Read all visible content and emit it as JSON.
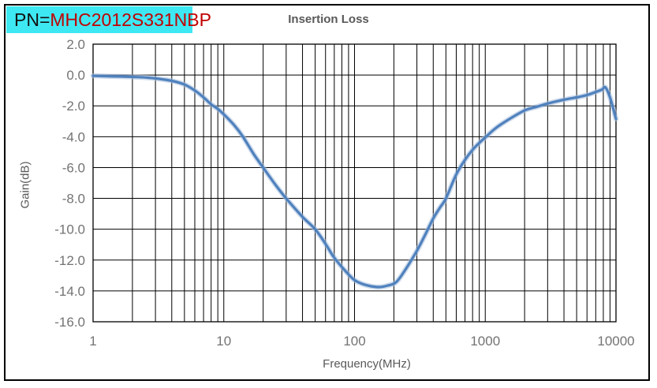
{
  "header": {
    "pn_prefix": "PN=",
    "pn_value": "MHC2012S331NBP",
    "pn_box_bg": "#3de8f2",
    "pn_value_color": "#c00000"
  },
  "chart_data": {
    "type": "line",
    "title": "Insertion Loss",
    "xlabel": "Frequency(MHz)",
    "ylabel": "Gain(dB)",
    "x_scale": "log",
    "xlim": [
      1,
      10000
    ],
    "ylim": [
      -16.0,
      2.0
    ],
    "y_tick_step": 2.0,
    "y_tick_labels": [
      "2.0",
      "0.0",
      "-2.0",
      "-4.0",
      "-6.0",
      "-8.0",
      "-10.0",
      "-12.0",
      "-14.0",
      "-16.0"
    ],
    "x_tick_labels": [
      "1",
      "10",
      "100",
      "1000",
      "10000"
    ],
    "grid": {
      "show": true,
      "color": "#000000",
      "log_minor_verticals": true
    },
    "legend": "none",
    "series": [
      {
        "name": "Insertion Loss",
        "color": "#4f81bd",
        "halo_color": "#a6bedd",
        "points": [
          [
            1,
            -0.05
          ],
          [
            1.3,
            -0.08
          ],
          [
            1.7,
            -0.1
          ],
          [
            2,
            -0.12
          ],
          [
            2.5,
            -0.16
          ],
          [
            3,
            -0.22
          ],
          [
            4,
            -0.38
          ],
          [
            5,
            -0.62
          ],
          [
            6,
            -1.0
          ],
          [
            7,
            -1.45
          ],
          [
            8,
            -1.9
          ],
          [
            9,
            -2.2
          ],
          [
            10,
            -2.55
          ],
          [
            12,
            -3.25
          ],
          [
            14,
            -4.0
          ],
          [
            17,
            -5.15
          ],
          [
            20,
            -6.0
          ],
          [
            25,
            -7.15
          ],
          [
            30,
            -8.0
          ],
          [
            40,
            -9.2
          ],
          [
            50,
            -10.0
          ],
          [
            60,
            -10.95
          ],
          [
            70,
            -11.85
          ],
          [
            85,
            -12.7
          ],
          [
            100,
            -13.3
          ],
          [
            120,
            -13.6
          ],
          [
            150,
            -13.75
          ],
          [
            180,
            -13.65
          ],
          [
            210,
            -13.4
          ],
          [
            250,
            -12.5
          ],
          [
            300,
            -11.4
          ],
          [
            350,
            -10.3
          ],
          [
            400,
            -9.3
          ],
          [
            450,
            -8.6
          ],
          [
            500,
            -8.0
          ],
          [
            600,
            -6.45
          ],
          [
            700,
            -5.5
          ],
          [
            800,
            -4.85
          ],
          [
            900,
            -4.4
          ],
          [
            1000,
            -4.05
          ],
          [
            1200,
            -3.45
          ],
          [
            1500,
            -2.9
          ],
          [
            2000,
            -2.3
          ],
          [
            2500,
            -2.05
          ],
          [
            3000,
            -1.85
          ],
          [
            4000,
            -1.6
          ],
          [
            5000,
            -1.45
          ],
          [
            6000,
            -1.3
          ],
          [
            7000,
            -1.1
          ],
          [
            7800,
            -0.95
          ],
          [
            8300,
            -0.8
          ],
          [
            9000,
            -1.45
          ],
          [
            10000,
            -2.85
          ]
        ]
      }
    ]
  },
  "styles": {
    "tick_label_color": "#737373",
    "axis_title_color": "#595959",
    "title_color": "#595959",
    "grid_color": "#000000",
    "border_color": "#000000"
  }
}
